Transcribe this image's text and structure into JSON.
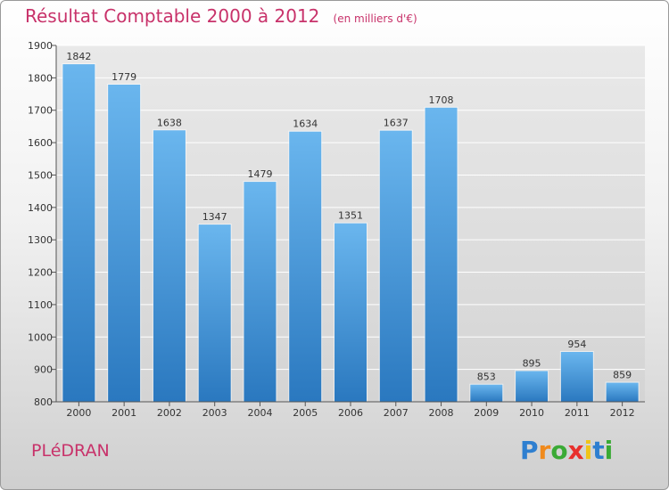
{
  "title": "Résultat Comptable 2000 à 2012",
  "unit": "(en milliers d'€)",
  "city": "PLéDRAN",
  "logo": {
    "letters": [
      "P",
      "r",
      "o",
      "x",
      "i",
      "t",
      "i"
    ],
    "colors": [
      "#2e7fd0",
      "#f08a1c",
      "#3aaa35",
      "#e8302c",
      "#f0c419",
      "#2e7fd0",
      "#3aaa35"
    ]
  },
  "colors": {
    "bar_top": "#6ab6ee",
    "bar_bottom": "#2a78bf",
    "title": "#c8326a"
  },
  "chart_data": {
    "type": "bar",
    "title": "Résultat Comptable 2000 à 2012",
    "subtitle": "(en milliers d'€)",
    "categories": [
      "2000",
      "2001",
      "2002",
      "2003",
      "2004",
      "2005",
      "2006",
      "2007",
      "2008",
      "2009",
      "2010",
      "2011",
      "2012"
    ],
    "values": [
      1842,
      1779,
      1638,
      1347,
      1479,
      1634,
      1351,
      1637,
      1708,
      853,
      895,
      954,
      859
    ],
    "ylim": [
      800,
      1900
    ],
    "yticks": [
      800,
      900,
      1000,
      1100,
      1200,
      1300,
      1400,
      1500,
      1600,
      1700,
      1800,
      1900
    ],
    "grid": true,
    "xlabel": "",
    "ylabel": ""
  }
}
